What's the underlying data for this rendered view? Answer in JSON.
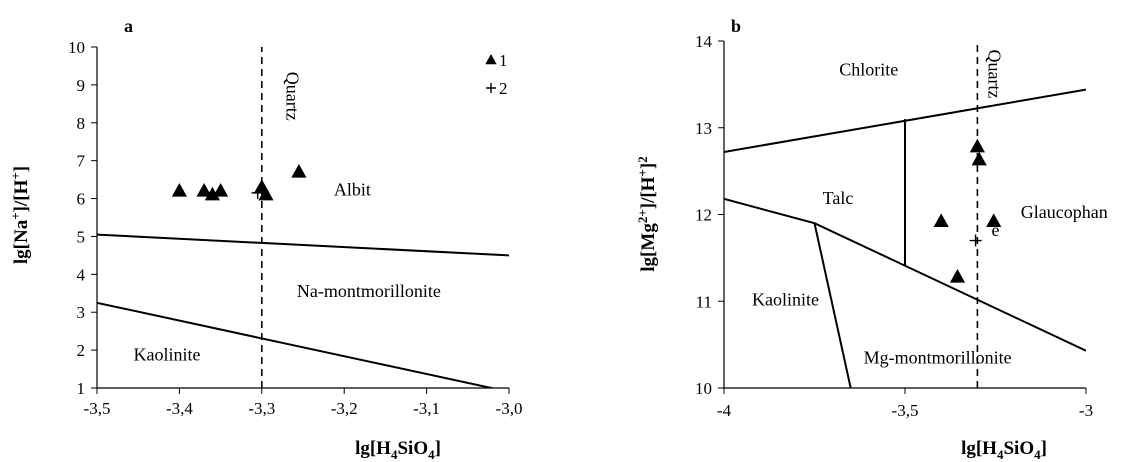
{
  "chart_data": [
    {
      "type": "scatter",
      "title": "a",
      "xlabel": {
        "prefix": "lg[H",
        "sub1": "4",
        "mid": "SiO",
        "sub2": "4",
        "suffix": "]"
      },
      "ylabel": {
        "p1": "lg[Na",
        "sup1": "+",
        "p2": "]/[H",
        "sup2": "+",
        "p3": "]"
      },
      "xlim": [
        -3.5,
        -3.0
      ],
      "ylim": [
        1,
        10
      ],
      "x_ticks": [
        -3.5,
        -3.4,
        -3.3,
        -3.2,
        -3.1,
        -3.0
      ],
      "x_tick_labels": [
        "-3,5",
        "-3,4",
        "-3,3",
        "-3,2",
        "-3,1",
        "-3,0"
      ],
      "y_ticks": [
        1,
        2,
        3,
        4,
        5,
        6,
        7,
        8,
        9,
        10
      ],
      "y_tick_labels": [
        "1",
        "2",
        "3",
        "4",
        "5",
        "6",
        "7",
        "8",
        "9",
        "10"
      ],
      "legend": {
        "placement": "top-right",
        "entries": [
          {
            "marker": "triangle",
            "label": "1"
          },
          {
            "marker": "plus",
            "label": "2"
          }
        ]
      },
      "series": [
        {
          "marker": "triangle",
          "points": [
            [
              -3.4,
              6.2
            ],
            [
              -3.37,
              6.2
            ],
            [
              -3.36,
              6.1
            ],
            [
              -3.35,
              6.2
            ],
            [
              -3.3,
              6.3
            ],
            [
              -3.295,
              6.1
            ],
            [
              -3.255,
              6.7
            ]
          ]
        },
        {
          "marker": "plus",
          "points": [
            [
              -3.305,
              6.15
            ]
          ]
        }
      ],
      "boundaries": [
        {
          "style": "solid",
          "points": [
            [
              -3.5,
              5.05
            ],
            [
              -3.0,
              4.5
            ]
          ]
        },
        {
          "style": "solid",
          "points": [
            [
              -3.5,
              3.25
            ],
            [
              -3.0,
              0.9
            ]
          ]
        },
        {
          "style": "dashed",
          "points": [
            [
              -3.3,
              1
            ],
            [
              -3.3,
              10
            ]
          ]
        }
      ],
      "regions": [
        {
          "text": "Quartz",
          "x": -3.27,
          "y": 8.7,
          "rotate": true
        },
        {
          "text": "Albit",
          "x": -3.19,
          "y": 6.08
        },
        {
          "text": "Na-montmorillonite",
          "x": -3.17,
          "y": 3.4
        },
        {
          "text": "Kaolinite",
          "x": -3.415,
          "y": 1.73
        }
      ]
    },
    {
      "type": "scatter",
      "title": "b",
      "xlabel": {
        "prefix": "lg[H",
        "sub1": "4",
        "mid": "SiO",
        "sub2": "4",
        "suffix": "]"
      },
      "ylabel": {
        "p1": "lg[Mg",
        "sup1": "2+",
        "p2": "]/[H",
        "sup2": "+",
        "p3": "]",
        "sup3": "2"
      },
      "xlim": [
        -4,
        -3
      ],
      "ylim": [
        10,
        14
      ],
      "x_ticks": [
        -4,
        -3.5,
        -3
      ],
      "x_tick_labels": [
        "-4",
        "-3,5",
        "-3"
      ],
      "y_ticks": [
        10,
        11,
        12,
        13,
        14
      ],
      "y_tick_labels": [
        "10",
        "11",
        "12",
        "13",
        "14"
      ],
      "series": [
        {
          "marker": "triangle",
          "points": [
            [
              -3.3,
              12.78
            ],
            [
              -3.295,
              12.63
            ],
            [
              -3.4,
              11.92
            ],
            [
              -3.255,
              11.92
            ],
            [
              -3.355,
              11.28
            ]
          ]
        },
        {
          "marker": "plus",
          "points": [
            [
              -3.305,
              11.7
            ]
          ]
        }
      ],
      "boundaries": [
        {
          "style": "solid",
          "points": [
            [
              -4,
              12.72
            ],
            [
              -3,
              13.44
            ]
          ]
        },
        {
          "style": "solid",
          "points": [
            [
              -4,
              12.18
            ],
            [
              -3.75,
              11.9
            ],
            [
              -3,
              10.43
            ]
          ]
        },
        {
          "style": "solid",
          "points": [
            [
              -3.75,
              11.9
            ],
            [
              -3.65,
              10
            ]
          ]
        },
        {
          "style": "solid",
          "points": [
            [
              -3.5,
              13.1
            ],
            [
              -3.5,
              11.4
            ]
          ]
        },
        {
          "style": "dashed",
          "points": [
            [
              -3.3,
              10
            ],
            [
              -3.3,
              14
            ]
          ]
        }
      ],
      "regions": [
        {
          "text": "Chlorite",
          "x": -3.6,
          "y": 13.6
        },
        {
          "text": "Talc",
          "x": -3.685,
          "y": 12.12
        },
        {
          "text": "Glaucophan",
          "x": -3.06,
          "y": 11.96
        },
        {
          "text": "e",
          "x": -3.25,
          "y": 11.75
        },
        {
          "text": "Quartz",
          "x": -3.27,
          "y": 13.62,
          "rotate": true
        },
        {
          "text": "Kaolinite",
          "x": -3.83,
          "y": 10.95
        },
        {
          "text": "Mg-montmorillonite",
          "x": -3.41,
          "y": 10.28
        }
      ]
    }
  ]
}
